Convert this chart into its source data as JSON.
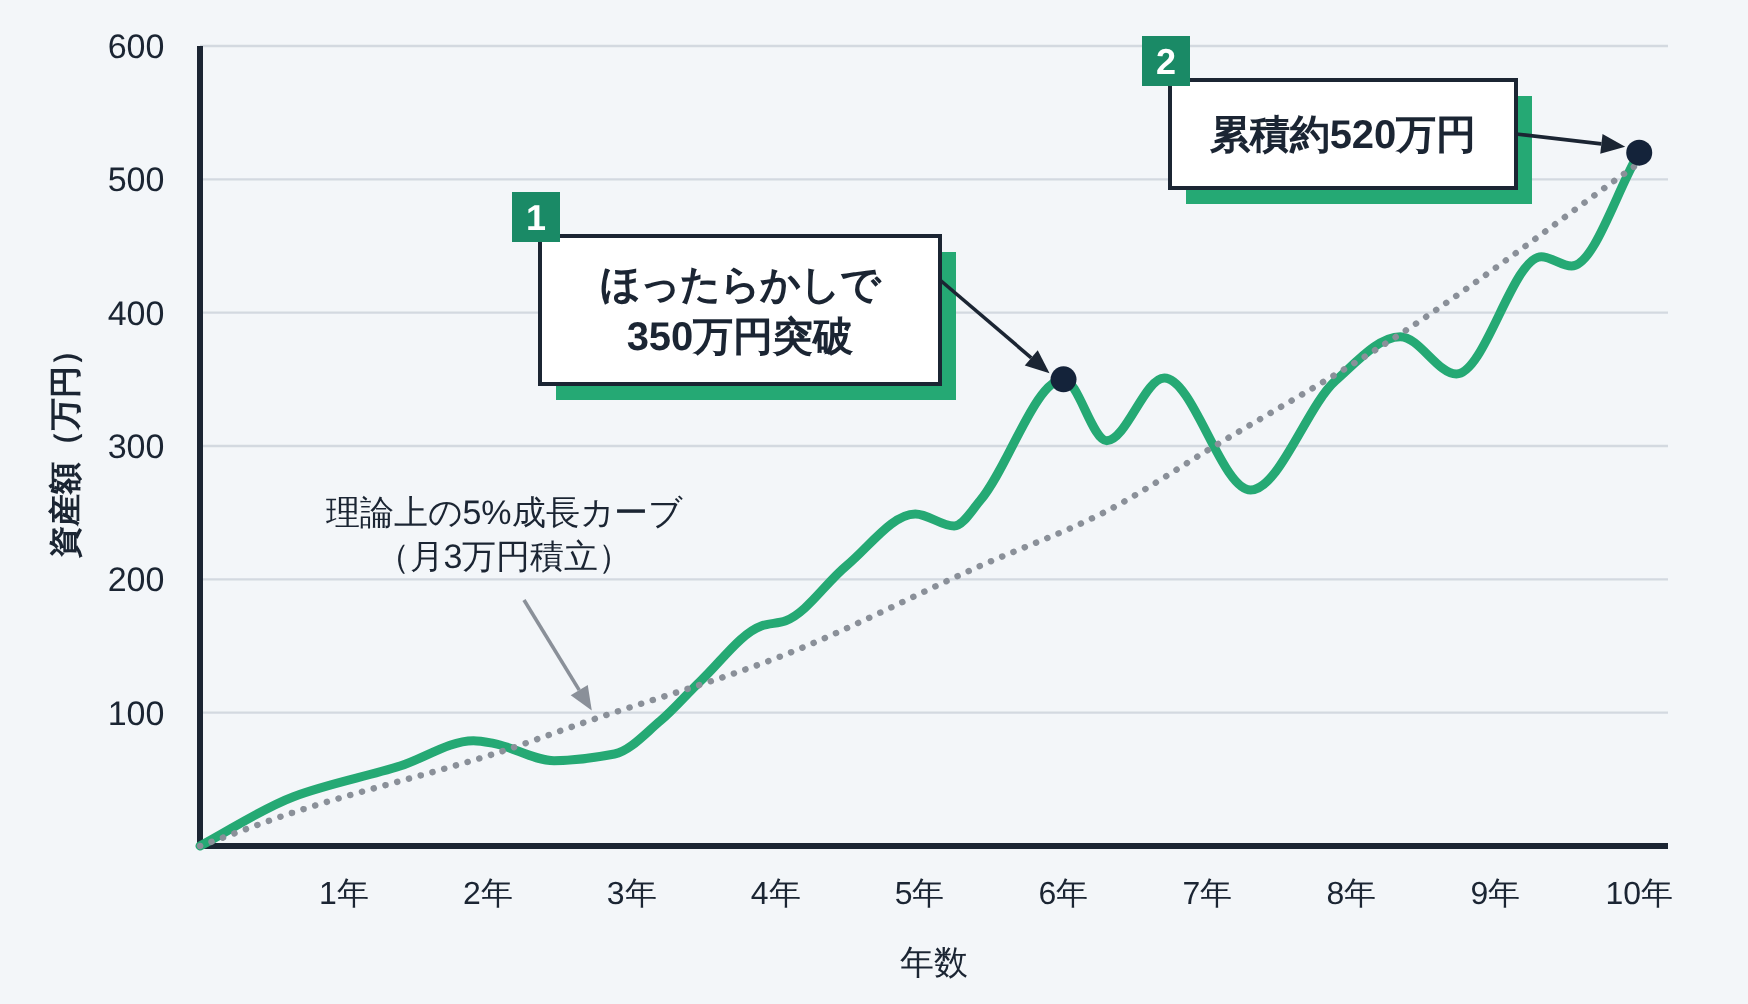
{
  "chart_data": {
    "type": "line",
    "xlabel": "年数",
    "ylabel": "資産額（万円）",
    "xlim": [
      0,
      10.2
    ],
    "ylim": [
      0,
      600
    ],
    "xticks": [
      {
        "value": 1,
        "label": "1年"
      },
      {
        "value": 2,
        "label": "2年"
      },
      {
        "value": 3,
        "label": "3年"
      },
      {
        "value": 4,
        "label": "4年"
      },
      {
        "value": 5,
        "label": "5年"
      },
      {
        "value": 6,
        "label": "6年"
      },
      {
        "value": 7,
        "label": "7年"
      },
      {
        "value": 8,
        "label": "8年"
      },
      {
        "value": 9,
        "label": "9年"
      },
      {
        "value": 10,
        "label": "10年"
      }
    ],
    "yticks": [
      100,
      200,
      300,
      400,
      500,
      600
    ],
    "grid": "y",
    "marker": "none",
    "series": [
      {
        "color": "#25a974",
        "line_style": "solid",
        "x": [
          0,
          0.65,
          1.39,
          1.9,
          2.04,
          2.46,
          2.88,
          3.2,
          3.48,
          3.9,
          4.07,
          4.49,
          4.97,
          5.24,
          5.42,
          6,
          6.3,
          6.7,
          7.3,
          7.89,
          8.34,
          8.73,
          9.32,
          9.53,
          10
        ],
        "values": [
          0,
          37,
          60,
          79,
          77,
          64,
          69,
          94,
          124,
          165,
          169,
          210,
          249,
          240,
          259,
          350,
          304,
          351,
          267,
          349,
          382,
          354,
          442,
          435,
          520
        ]
      },
      {
        "color": "#8a9099",
        "line_style": "dotted",
        "x": [
          0,
          0.7,
          2.04,
          2.68,
          4.03,
          5.42,
          6.26,
          7.05,
          8.34,
          9.97
        ],
        "values": [
          0,
          27,
          69,
          93,
          142,
          210,
          249,
          300,
          384,
          510
        ]
      },
      {
        "type": "scatter",
        "color": "#14233a",
        "marker": "circle",
        "x": [
          6,
          10
        ],
        "values": [
          350,
          520
        ]
      }
    ],
    "annotations": [
      "ほったらかしで350万円突破",
      "累積約520万円",
      "理論上の5%成長カーブ（月3万円積立）",
      "1",
      "2"
    ]
  }
}
